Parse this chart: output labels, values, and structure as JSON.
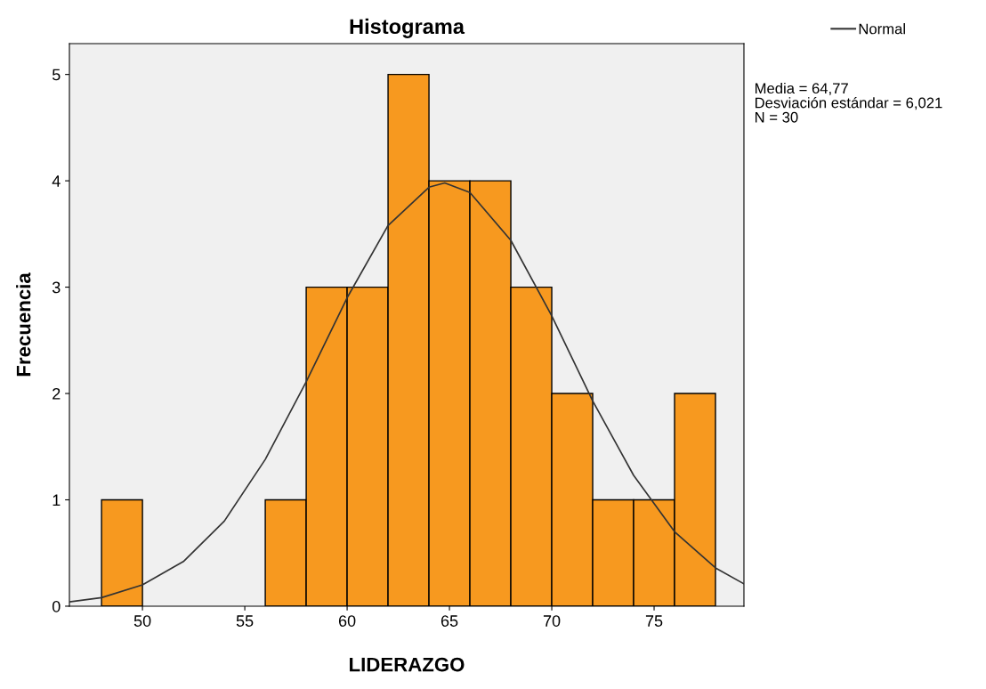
{
  "chart_data": {
    "type": "histogram",
    "title": "Histograma",
    "xlabel": "LIDERAZGO",
    "ylabel": "Frecuencia",
    "series": [
      {
        "color": "#f7991f",
        "bins": [
          48,
          50,
          52,
          54,
          56,
          58,
          60,
          62,
          64,
          66,
          68,
          70,
          72,
          74,
          76,
          78
        ],
        "values": [
          1,
          0,
          0,
          0,
          1,
          3,
          3,
          5,
          4,
          4,
          3,
          2,
          1,
          1,
          2
        ]
      },
      {
        "type": "line",
        "name": "Normal",
        "color": "#333333",
        "x": [
          46.43,
          48,
          50,
          52,
          54,
          56,
          58,
          60,
          62,
          64,
          64.77,
          66,
          68,
          70,
          72,
          74,
          76,
          78,
          79.39
        ],
        "values": [
          0.04,
          0.08,
          0.2,
          0.42,
          0.8,
          1.38,
          2.11,
          2.9,
          3.58,
          3.94,
          3.98,
          3.89,
          3.44,
          2.73,
          1.93,
          1.23,
          0.7,
          0.36,
          0.21
        ]
      }
    ],
    "annotations": [
      "Media = 64,77",
      "Desviación estándar = 6,021",
      "N = 30"
    ],
    "xlim": [
      46.43,
      79.39
    ],
    "xticks": [
      50,
      55,
      60,
      65,
      70,
      75
    ],
    "ylim": [
      0,
      5.29
    ],
    "yticks": [
      0,
      1,
      2,
      3,
      4,
      5
    ],
    "grid": false,
    "legend": "top right",
    "marker": "none",
    "line_style": "solid"
  }
}
